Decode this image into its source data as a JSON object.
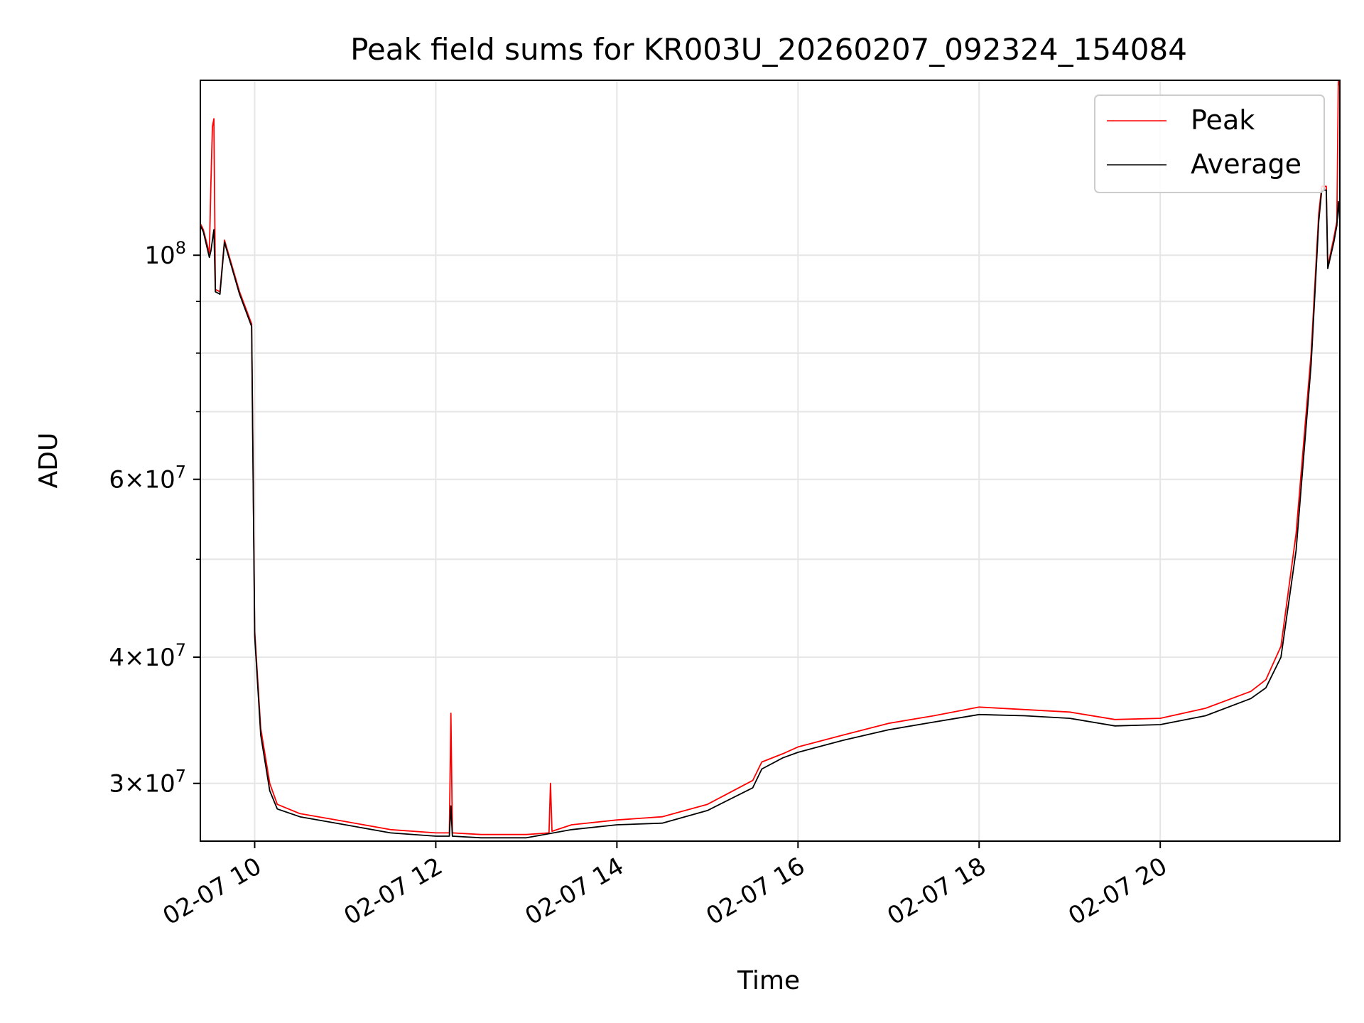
{
  "chart_data": {
    "type": "line",
    "title": "Peak field sums for KR003U_20260207_092324_154084",
    "xlabel": "Time",
    "ylabel": "ADU",
    "yscale": "log",
    "xlim": [
      "2026-02-07 09:24",
      "2026-02-07 21:59"
    ],
    "ylim": [
      26300000,
      149000000
    ],
    "grid": true,
    "legend": "top-right",
    "x_ticks": [
      {
        "value": "2026-02-07 10:00",
        "label": "02-07 10"
      },
      {
        "value": "2026-02-07 12:00",
        "label": "02-07 12"
      },
      {
        "value": "2026-02-07 14:00",
        "label": "02-07 14"
      },
      {
        "value": "2026-02-07 16:00",
        "label": "02-07 16"
      },
      {
        "value": "2026-02-07 18:00",
        "label": "02-07 18"
      },
      {
        "value": "2026-02-07 20:00",
        "label": "02-07 20"
      }
    ],
    "y_ticks": [
      {
        "value": 30000000,
        "base": "3",
        "exp": "7"
      },
      {
        "value": 40000000,
        "base": "4",
        "exp": "7"
      },
      {
        "value": 60000000,
        "base": "6",
        "exp": "7"
      },
      {
        "value": 100000000,
        "base": "",
        "exp": "8"
      }
    ],
    "series": [
      {
        "name": "Peak",
        "color": "#ff0000",
        "points": [
          [
            "2026-02-07 09:24",
            107500000
          ],
          [
            "2026-02-07 09:26",
            106000000
          ],
          [
            "2026-02-07 09:30",
            100500000
          ],
          [
            "2026-02-07 09:31",
            118000000
          ],
          [
            "2026-02-07 09:32",
            134000000
          ],
          [
            "2026-02-07 09:33",
            136500000
          ],
          [
            "2026-02-07 09:34",
            92500000
          ],
          [
            "2026-02-07 09:37",
            92000000
          ],
          [
            "2026-02-07 09:40",
            103500000
          ],
          [
            "2026-02-07 09:50",
            92000000
          ],
          [
            "2026-02-07 09:58",
            85500000
          ],
          [
            "2026-02-07 10:00",
            42500000
          ],
          [
            "2026-02-07 10:04",
            34000000
          ],
          [
            "2026-02-07 10:10",
            30000000
          ],
          [
            "2026-02-07 10:15",
            28600000
          ],
          [
            "2026-02-07 10:30",
            28000000
          ],
          [
            "2026-02-07 11:00",
            27500000
          ],
          [
            "2026-02-07 11:30",
            27000000
          ],
          [
            "2026-02-07 12:00",
            26800000
          ],
          [
            "2026-02-07 12:09",
            26800000
          ],
          [
            "2026-02-07 12:10",
            35200000
          ],
          [
            "2026-02-07 12:11",
            26800000
          ],
          [
            "2026-02-07 12:30",
            26700000
          ],
          [
            "2026-02-07 13:00",
            26700000
          ],
          [
            "2026-02-07 13:15",
            26800000
          ],
          [
            "2026-02-07 13:16",
            30000000
          ],
          [
            "2026-02-07 13:17",
            26900000
          ],
          [
            "2026-02-07 13:30",
            27300000
          ],
          [
            "2026-02-07 14:00",
            27600000
          ],
          [
            "2026-02-07 14:30",
            27800000
          ],
          [
            "2026-02-07 15:00",
            28600000
          ],
          [
            "2026-02-07 15:30",
            30200000
          ],
          [
            "2026-02-07 15:36",
            31500000
          ],
          [
            "2026-02-07 15:50",
            32100000
          ],
          [
            "2026-02-07 16:00",
            32600000
          ],
          [
            "2026-02-07 16:30",
            33500000
          ],
          [
            "2026-02-07 17:00",
            34400000
          ],
          [
            "2026-02-07 17:30",
            35000000
          ],
          [
            "2026-02-07 18:00",
            35700000
          ],
          [
            "2026-02-07 18:30",
            35500000
          ],
          [
            "2026-02-07 19:00",
            35300000
          ],
          [
            "2026-02-07 19:30",
            34700000
          ],
          [
            "2026-02-07 20:00",
            34800000
          ],
          [
            "2026-02-07 20:30",
            35600000
          ],
          [
            "2026-02-07 21:00",
            37000000
          ],
          [
            "2026-02-07 21:10",
            38000000
          ],
          [
            "2026-02-07 21:20",
            41000000
          ],
          [
            "2026-02-07 21:30",
            53000000
          ],
          [
            "2026-02-07 21:40",
            80000000
          ],
          [
            "2026-02-07 21:45",
            110000000
          ],
          [
            "2026-02-07 21:47",
            117000000
          ],
          [
            "2026-02-07 21:50",
            117000000
          ],
          [
            "2026-02-07 21:51",
            97500000
          ],
          [
            "2026-02-07 21:55",
            104000000
          ],
          [
            "2026-02-07 21:57",
            108000000
          ],
          [
            "2026-02-07 21:58",
            149000000
          ],
          [
            "2026-02-07 21:59",
            147000000
          ]
        ]
      },
      {
        "name": "Average",
        "color": "#000000",
        "points": [
          [
            "2026-02-07 09:24",
            107000000
          ],
          [
            "2026-02-07 09:26",
            105500000
          ],
          [
            "2026-02-07 09:30",
            99500000
          ],
          [
            "2026-02-07 09:31",
            101000000
          ],
          [
            "2026-02-07 09:33",
            106000000
          ],
          [
            "2026-02-07 09:34",
            92000000
          ],
          [
            "2026-02-07 09:37",
            91500000
          ],
          [
            "2026-02-07 09:40",
            103000000
          ],
          [
            "2026-02-07 09:50",
            91500000
          ],
          [
            "2026-02-07 09:58",
            85000000
          ],
          [
            "2026-02-07 10:00",
            42000000
          ],
          [
            "2026-02-07 10:04",
            33500000
          ],
          [
            "2026-02-07 10:10",
            29500000
          ],
          [
            "2026-02-07 10:15",
            28300000
          ],
          [
            "2026-02-07 10:30",
            27800000
          ],
          [
            "2026-02-07 11:00",
            27300000
          ],
          [
            "2026-02-07 11:30",
            26800000
          ],
          [
            "2026-02-07 12:00",
            26600000
          ],
          [
            "2026-02-07 12:09",
            26600000
          ],
          [
            "2026-02-07 12:10",
            28500000
          ],
          [
            "2026-02-07 12:11",
            26600000
          ],
          [
            "2026-02-07 12:30",
            26500000
          ],
          [
            "2026-02-07 13:00",
            26500000
          ],
          [
            "2026-02-07 13:30",
            27000000
          ],
          [
            "2026-02-07 14:00",
            27300000
          ],
          [
            "2026-02-07 14:30",
            27400000
          ],
          [
            "2026-02-07 15:00",
            28200000
          ],
          [
            "2026-02-07 15:30",
            29700000
          ],
          [
            "2026-02-07 15:36",
            31000000
          ],
          [
            "2026-02-07 15:50",
            31800000
          ],
          [
            "2026-02-07 16:00",
            32200000
          ],
          [
            "2026-02-07 16:30",
            33100000
          ],
          [
            "2026-02-07 17:00",
            33900000
          ],
          [
            "2026-02-07 17:30",
            34500000
          ],
          [
            "2026-02-07 18:00",
            35100000
          ],
          [
            "2026-02-07 18:30",
            35000000
          ],
          [
            "2026-02-07 19:00",
            34800000
          ],
          [
            "2026-02-07 19:30",
            34200000
          ],
          [
            "2026-02-07 20:00",
            34300000
          ],
          [
            "2026-02-07 20:30",
            35000000
          ],
          [
            "2026-02-07 21:00",
            36400000
          ],
          [
            "2026-02-07 21:10",
            37300000
          ],
          [
            "2026-02-07 21:20",
            40000000
          ],
          [
            "2026-02-07 21:30",
            51000000
          ],
          [
            "2026-02-07 21:40",
            78000000
          ],
          [
            "2026-02-07 21:45",
            108000000
          ],
          [
            "2026-02-07 21:47",
            116000000
          ],
          [
            "2026-02-07 21:50",
            116000000
          ],
          [
            "2026-02-07 21:51",
            97000000
          ],
          [
            "2026-02-07 21:55",
            103000000
          ],
          [
            "2026-02-07 21:57",
            107000000
          ],
          [
            "2026-02-07 21:58",
            113000000
          ],
          [
            "2026-02-07 21:59",
            108000000
          ]
        ]
      }
    ]
  }
}
